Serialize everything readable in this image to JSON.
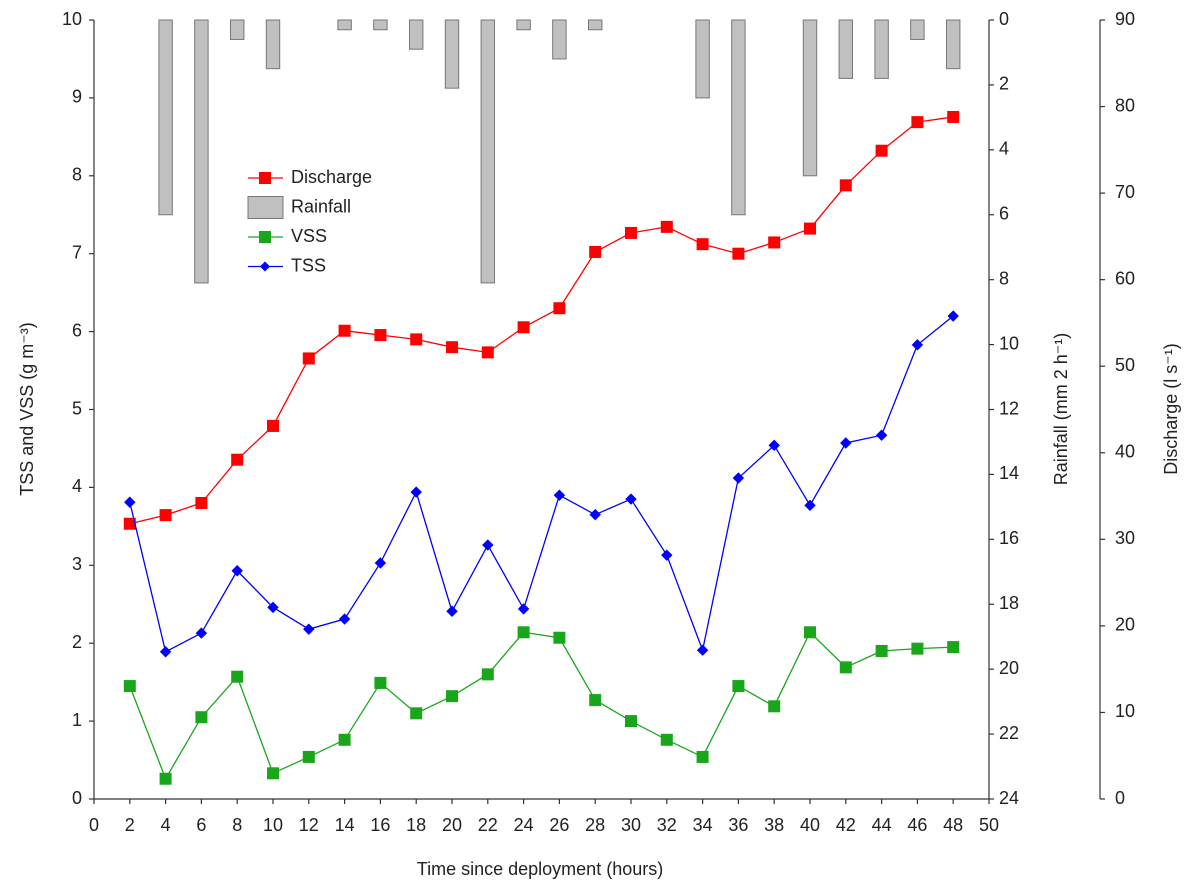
{
  "chart_data": {
    "type": "line",
    "x_label": "Time since deployment (hours)",
    "y_label": "TSS and VSS (g m⁻³)",
    "y2_label": "Rainfall (mm 2 h⁻¹)",
    "y3_label": "Discharge (l s⁻¹)",
    "x": [
      2,
      4,
      6,
      8,
      10,
      12,
      14,
      16,
      18,
      20,
      22,
      24,
      26,
      28,
      30,
      32,
      34,
      36,
      38,
      40,
      42,
      44,
      46,
      48
    ],
    "xlim": [
      0,
      50
    ],
    "xticks": [
      0,
      2,
      4,
      6,
      8,
      10,
      12,
      14,
      16,
      18,
      20,
      22,
      24,
      26,
      28,
      30,
      32,
      34,
      36,
      38,
      40,
      42,
      44,
      46,
      48,
      50
    ],
    "ylim": [
      0,
      10
    ],
    "yticks": [
      0,
      1,
      2,
      3,
      4,
      5,
      6,
      7,
      8,
      9,
      10
    ],
    "y2lim": [
      0,
      24
    ],
    "y2ticks": [
      0,
      2,
      4,
      6,
      8,
      10,
      12,
      14,
      16,
      18,
      20,
      22,
      24
    ],
    "y2_inverted": true,
    "y3lim": [
      0,
      90
    ],
    "y3ticks": [
      0,
      10,
      20,
      30,
      40,
      50,
      60,
      70,
      80,
      90
    ],
    "series": [
      {
        "name": "Discharge",
        "color": "#ff0000",
        "type": "line",
        "marker": "square",
        "axis": "y3",
        "values": [
          31.8,
          32.8,
          34.2,
          39.2,
          43.1,
          50.9,
          54.1,
          53.6,
          53.1,
          52.2,
          51.6,
          54.5,
          56.7,
          63.2,
          65.4,
          66.1,
          64.1,
          63.0,
          64.3,
          65.9,
          70.9,
          74.9,
          78.2,
          78.8
        ]
      },
      {
        "name": "Rainfall",
        "color": "#c0c0c0",
        "type": "bar",
        "axis": "y2",
        "values": [
          null,
          6.0,
          8.1,
          0.6,
          1.5,
          null,
          0.3,
          0.3,
          0.9,
          2.1,
          8.1,
          0.3,
          1.2,
          0.3,
          null,
          null,
          2.4,
          6.0,
          null,
          4.8,
          1.8,
          1.8,
          0.6,
          1.5
        ]
      },
      {
        "name": "VSS",
        "color": "#1aa61a",
        "type": "line",
        "marker": "square",
        "axis": "y",
        "values": [
          1.45,
          0.26,
          1.05,
          1.57,
          0.33,
          0.54,
          0.76,
          1.49,
          1.1,
          1.32,
          1.6,
          2.14,
          2.07,
          1.27,
          1.0,
          0.76,
          0.54,
          1.45,
          1.19,
          2.14,
          1.69,
          1.9,
          1.93,
          1.95
        ]
      },
      {
        "name": "TSS",
        "color": "#0000ff",
        "type": "line",
        "marker": "diamond",
        "axis": "y",
        "values": [
          3.81,
          1.89,
          2.13,
          2.93,
          2.46,
          2.18,
          2.31,
          3.03,
          3.94,
          2.41,
          3.26,
          2.44,
          3.9,
          3.65,
          3.85,
          3.13,
          1.91,
          4.12,
          4.54,
          3.77,
          4.57,
          4.67,
          5.83,
          6.2
        ]
      }
    ]
  }
}
